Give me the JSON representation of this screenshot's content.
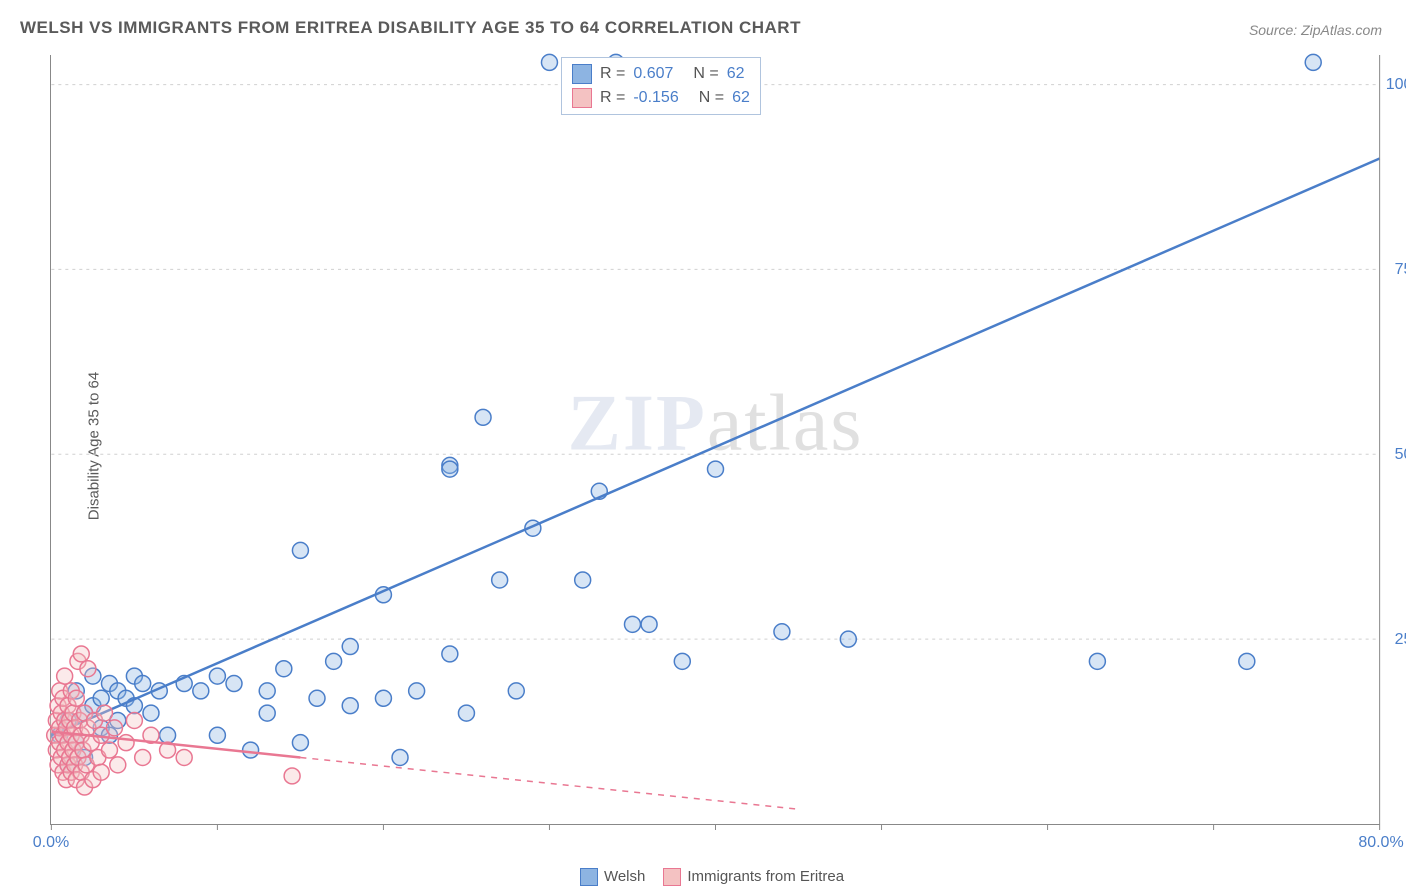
{
  "title": "WELSH VS IMMIGRANTS FROM ERITREA DISABILITY AGE 35 TO 64 CORRELATION CHART",
  "source": "Source: ZipAtlas.com",
  "ylabel": "Disability Age 35 to 64",
  "watermark_bold": "ZIP",
  "watermark_thin": "atlas",
  "chart": {
    "type": "scatter",
    "background_color": "#ffffff",
    "grid_color": "#d0d0d0",
    "axis_color": "#888888",
    "axis_label_color": "#4a7ec9",
    "xlim": [
      0,
      80
    ],
    "ylim": [
      0,
      104
    ],
    "xtick_positions": [
      0,
      10,
      20,
      30,
      40,
      50,
      60,
      70,
      80
    ],
    "xtick_labels": {
      "0": "0.0%",
      "80": "80.0%"
    },
    "ytick_positions": [
      25,
      50,
      75,
      100
    ],
    "ytick_labels": {
      "25": "25.0%",
      "50": "50.0%",
      "75": "75.0%",
      "100": "100.0%"
    },
    "marker_radius": 8,
    "marker_stroke_width": 1.5,
    "marker_fill_opacity": 0.35,
    "series": [
      {
        "name": "Welsh",
        "color": "#8db4e2",
        "stroke": "#4a7ec9",
        "r_value": "0.607",
        "n_value": "62",
        "trend": {
          "x1": 0,
          "y1": 12,
          "x2": 80,
          "y2": 90,
          "style": "solid",
          "solid_until_x": 80
        },
        "points": [
          [
            0.5,
            12
          ],
          [
            1,
            14
          ],
          [
            1,
            8
          ],
          [
            1.5,
            18
          ],
          [
            1.5,
            11
          ],
          [
            2,
            15
          ],
          [
            2,
            9
          ],
          [
            2.5,
            16
          ],
          [
            2.5,
            20
          ],
          [
            3,
            13
          ],
          [
            3,
            17
          ],
          [
            3.5,
            12
          ],
          [
            3.5,
            19
          ],
          [
            4,
            18
          ],
          [
            4,
            14
          ],
          [
            4.5,
            17
          ],
          [
            5,
            16
          ],
          [
            5,
            20
          ],
          [
            5.5,
            19
          ],
          [
            6,
            15
          ],
          [
            6.5,
            18
          ],
          [
            7,
            12
          ],
          [
            8,
            19
          ],
          [
            9,
            18
          ],
          [
            10,
            20
          ],
          [
            10,
            12
          ],
          [
            11,
            19
          ],
          [
            12,
            10
          ],
          [
            13,
            15
          ],
          [
            13,
            18
          ],
          [
            14,
            21
          ],
          [
            15,
            11
          ],
          [
            15,
            37
          ],
          [
            16,
            17
          ],
          [
            17,
            22
          ],
          [
            18,
            16
          ],
          [
            18,
            24
          ],
          [
            20,
            17
          ],
          [
            20,
            31
          ],
          [
            21,
            9
          ],
          [
            22,
            18
          ],
          [
            24,
            23
          ],
          [
            24,
            48.5
          ],
          [
            24,
            48
          ],
          [
            25,
            15
          ],
          [
            26,
            55
          ],
          [
            27,
            33
          ],
          [
            28,
            18
          ],
          [
            29,
            40
          ],
          [
            30,
            103
          ],
          [
            32,
            33
          ],
          [
            33,
            45
          ],
          [
            34,
            103
          ],
          [
            35,
            27
          ],
          [
            36,
            27
          ],
          [
            38,
            22
          ],
          [
            40,
            48
          ],
          [
            44,
            26
          ],
          [
            48,
            25
          ],
          [
            63,
            22
          ],
          [
            72,
            22
          ],
          [
            76,
            103
          ]
        ]
      },
      {
        "name": "Immigrants from Eritrea",
        "color": "#f4c2c2",
        "stroke": "#e97792",
        "r_value": "-0.156",
        "n_value": "62",
        "trend": {
          "x1": 0,
          "y1": 12.5,
          "x2": 45,
          "y2": 2,
          "style": "dashed",
          "solid_until_x": 15
        },
        "points": [
          [
            0.2,
            12
          ],
          [
            0.3,
            10
          ],
          [
            0.3,
            14
          ],
          [
            0.4,
            8
          ],
          [
            0.4,
            16
          ],
          [
            0.5,
            11
          ],
          [
            0.5,
            13
          ],
          [
            0.5,
            18
          ],
          [
            0.6,
            9
          ],
          [
            0.6,
            15
          ],
          [
            0.7,
            7
          ],
          [
            0.7,
            12
          ],
          [
            0.7,
            17
          ],
          [
            0.8,
            10
          ],
          [
            0.8,
            14
          ],
          [
            0.8,
            20
          ],
          [
            0.9,
            6
          ],
          [
            0.9,
            13
          ],
          [
            1.0,
            8
          ],
          [
            1.0,
            11
          ],
          [
            1.0,
            16
          ],
          [
            1.1,
            9
          ],
          [
            1.1,
            14
          ],
          [
            1.2,
            7
          ],
          [
            1.2,
            12
          ],
          [
            1.2,
            18
          ],
          [
            1.3,
            10
          ],
          [
            1.3,
            15
          ],
          [
            1.4,
            8
          ],
          [
            1.4,
            13
          ],
          [
            1.5,
            6
          ],
          [
            1.5,
            11
          ],
          [
            1.5,
            17
          ],
          [
            1.6,
            22
          ],
          [
            1.6,
            9
          ],
          [
            1.7,
            14
          ],
          [
            1.8,
            7
          ],
          [
            1.8,
            12
          ],
          [
            1.8,
            23
          ],
          [
            1.9,
            10
          ],
          [
            2.0,
            5
          ],
          [
            2.0,
            15
          ],
          [
            2.1,
            8
          ],
          [
            2.2,
            13
          ],
          [
            2.2,
            21
          ],
          [
            2.4,
            11
          ],
          [
            2.5,
            6
          ],
          [
            2.6,
            14
          ],
          [
            2.8,
            9
          ],
          [
            3.0,
            12
          ],
          [
            3.0,
            7
          ],
          [
            3.2,
            15
          ],
          [
            3.5,
            10
          ],
          [
            3.8,
            13
          ],
          [
            4.0,
            8
          ],
          [
            4.5,
            11
          ],
          [
            5.0,
            14
          ],
          [
            5.5,
            9
          ],
          [
            6.0,
            12
          ],
          [
            7.0,
            10
          ],
          [
            8.0,
            9
          ],
          [
            14.5,
            6.5
          ]
        ]
      }
    ]
  }
}
